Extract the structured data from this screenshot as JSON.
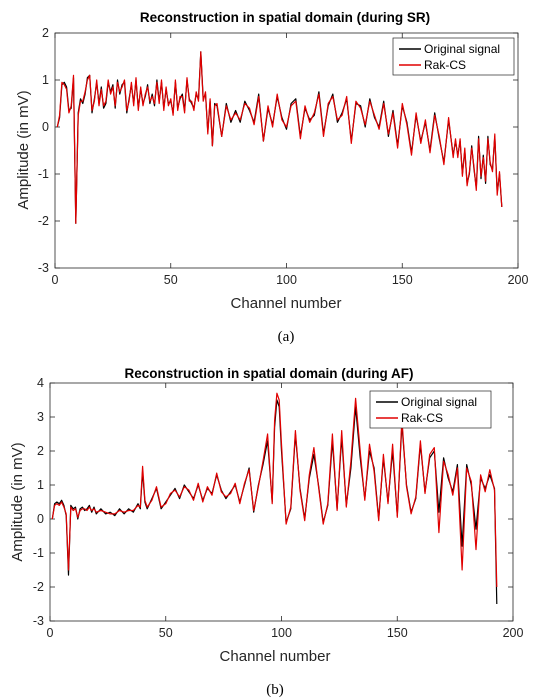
{
  "chart_data": [
    {
      "type": "line",
      "title": "Reconstruction in spatial domain (during SR)",
      "xlabel": "Channel number",
      "ylabel": "Amplitude (in mV)",
      "xlim": [
        0,
        200
      ],
      "ylim": [
        -3,
        2
      ],
      "xticks": [
        0,
        50,
        100,
        150,
        200
      ],
      "yticks": [
        -3,
        -2,
        -1,
        0,
        1,
        2
      ],
      "xtick_labels": [
        "0",
        "50",
        "100",
        "150",
        "200"
      ],
      "ytick_labels": [
        "-3",
        "-2",
        "-1",
        "0",
        "1",
        "2"
      ],
      "grid": false,
      "legend_position": "top-right",
      "caption": "(a)",
      "series": [
        {
          "name": "Original signal",
          "color": "#000000",
          "x": [
            1,
            2,
            3,
            4,
            5,
            6,
            7,
            8,
            9,
            10,
            11,
            12,
            13,
            14,
            15,
            16,
            17,
            18,
            19,
            20,
            21,
            22,
            23,
            24,
            25,
            26,
            27,
            28,
            29,
            30,
            31,
            32,
            33,
            34,
            35,
            36,
            37,
            38,
            39,
            40,
            41,
            42,
            43,
            44,
            45,
            46,
            47,
            48,
            49,
            50,
            51,
            52,
            53,
            54,
            55,
            56,
            57,
            58,
            59,
            60,
            61,
            62,
            63,
            64,
            65,
            66,
            67,
            68,
            69,
            70,
            72,
            74,
            76,
            78,
            80,
            82,
            84,
            86,
            88,
            90,
            92,
            94,
            96,
            98,
            100,
            102,
            104,
            106,
            108,
            110,
            112,
            114,
            116,
            118,
            120,
            122,
            124,
            126,
            128,
            130,
            132,
            134,
            136,
            138,
            140,
            142,
            144,
            146,
            148,
            150,
            152,
            154,
            156,
            158,
            160,
            162,
            164,
            166,
            168,
            170,
            172,
            173,
            174,
            175,
            176,
            177,
            178,
            179,
            180,
            181,
            182,
            183,
            184,
            185,
            186,
            187,
            188,
            189,
            190,
            191,
            192,
            193
          ],
          "y": [
            0,
            0.2,
            0.9,
            0.95,
            0.85,
            0.35,
            0.4,
            1.05,
            -2.05,
            0.3,
            0.6,
            0.5,
            0.7,
            1.05,
            1.1,
            0.3,
            0.6,
            0.95,
            0.5,
            0.85,
            0.4,
            0.5,
            0.95,
            0.75,
            0.9,
            0.4,
            1.0,
            0.7,
            0.9,
            0.95,
            0.3,
            0.6,
            0.9,
            0.5,
            1.0,
            0.4,
            0.8,
            0.5,
            0.65,
            0.9,
            0.5,
            0.7,
            0.45,
            1.0,
            0.55,
            0.95,
            0.4,
            0.8,
            0.5,
            0.55,
            0.3,
            0.95,
            0.4,
            0.6,
            0.7,
            0.35,
            1.0,
            0.6,
            0.5,
            0.4,
            0.7,
            0.6,
            1.6,
            0.6,
            0.7,
            -0.1,
            0.55,
            -0.4,
            0.5,
            0.45,
            -0.2,
            0.5,
            0.1,
            0.35,
            0.1,
            0.55,
            0.35,
            0.1,
            0.7,
            -0.3,
            0.4,
            0.05,
            0.65,
            0.2,
            -0.05,
            0.5,
            0.6,
            -0.2,
            0.4,
            0.15,
            0.25,
            0.75,
            -0.15,
            0.45,
            0.7,
            0.1,
            0.3,
            0.6,
            -0.3,
            0.5,
            0.45,
            0.0,
            0.6,
            0.2,
            0.0,
            0.55,
            -0.2,
            0.35,
            -0.4,
            0.45,
            0.1,
            -0.55,
            0.25,
            -0.3,
            0.1,
            -0.5,
            0.3,
            -0.25,
            -0.75,
            0.15,
            -0.6,
            -0.3,
            -0.6,
            -0.3,
            -1.0,
            -0.5,
            -1.2,
            -1.0,
            -0.4,
            -0.9,
            -1.3,
            -0.2,
            -1.1,
            -0.6,
            -1.2,
            -0.2,
            -0.8,
            -0.9,
            -0.2,
            -1.4,
            -1.0,
            -1.7
          ],
          "x_line": [
            1,
            200
          ]
        },
        {
          "name": "Rak-CS",
          "color": "#e00000",
          "x": [
            1,
            2,
            3,
            4,
            5,
            6,
            7,
            8,
            9,
            10,
            11,
            12,
            13,
            14,
            15,
            16,
            17,
            18,
            19,
            20,
            21,
            22,
            23,
            24,
            25,
            26,
            27,
            28,
            29,
            30,
            31,
            32,
            33,
            34,
            35,
            36,
            37,
            38,
            39,
            40,
            41,
            42,
            43,
            44,
            45,
            46,
            47,
            48,
            49,
            50,
            51,
            52,
            53,
            54,
            55,
            56,
            57,
            58,
            59,
            60,
            61,
            62,
            63,
            64,
            65,
            66,
            67,
            68,
            69,
            70,
            72,
            74,
            76,
            78,
            80,
            82,
            84,
            86,
            88,
            90,
            92,
            94,
            96,
            98,
            100,
            102,
            104,
            106,
            108,
            110,
            112,
            114,
            116,
            118,
            120,
            122,
            124,
            126,
            128,
            130,
            132,
            134,
            136,
            138,
            140,
            142,
            144,
            146,
            148,
            150,
            152,
            154,
            156,
            158,
            160,
            162,
            164,
            166,
            168,
            170,
            172,
            173,
            174,
            175,
            176,
            177,
            178,
            179,
            180,
            181,
            182,
            183,
            184,
            185,
            186,
            187,
            188,
            189,
            190,
            191,
            192,
            193
          ],
          "y": [
            0,
            0.25,
            0.95,
            0.9,
            0.8,
            0.3,
            0.45,
            1.1,
            -2.05,
            0.25,
            0.55,
            0.55,
            0.75,
            1.0,
            1.1,
            0.35,
            0.55,
            1.0,
            0.45,
            0.8,
            0.45,
            0.55,
            1.0,
            0.7,
            0.85,
            0.45,
            0.95,
            0.75,
            0.85,
            1.0,
            0.35,
            0.55,
            0.95,
            0.45,
            1.05,
            0.35,
            0.85,
            0.45,
            0.7,
            0.85,
            0.55,
            0.65,
            0.5,
            0.95,
            0.5,
            1.0,
            0.35,
            0.85,
            0.45,
            0.6,
            0.25,
            1.0,
            0.35,
            0.65,
            0.65,
            0.3,
            1.05,
            0.55,
            0.55,
            0.35,
            0.75,
            0.55,
            1.6,
            0.55,
            0.75,
            -0.15,
            0.6,
            -0.4,
            0.45,
            0.5,
            -0.2,
            0.45,
            0.15,
            0.3,
            0.15,
            0.5,
            0.4,
            0.05,
            0.65,
            -0.3,
            0.45,
            0.0,
            0.7,
            0.15,
            0.0,
            0.45,
            0.55,
            -0.25,
            0.45,
            0.1,
            0.3,
            0.7,
            -0.2,
            0.5,
            0.65,
            0.15,
            0.25,
            0.65,
            -0.35,
            0.55,
            0.4,
            0.05,
            0.55,
            0.25,
            -0.05,
            0.5,
            -0.15,
            0.3,
            -0.45,
            0.5,
            0.05,
            -0.6,
            0.3,
            -0.35,
            0.15,
            -0.55,
            0.25,
            -0.2,
            -0.8,
            0.2,
            -0.65,
            -0.25,
            -0.65,
            -0.25,
            -1.05,
            -0.45,
            -1.25,
            -0.95,
            -0.45,
            -0.85,
            -1.35,
            -0.25,
            -1.05,
            -0.65,
            -1.15,
            -0.25,
            -0.75,
            -0.95,
            -0.15,
            -1.45,
            -0.95,
            -1.7
          ]
        }
      ]
    },
    {
      "type": "line",
      "title": "Reconstruction in spatial domain (during AF)",
      "xlabel": "Channel number",
      "ylabel": "Amplitude (in mV)",
      "xlim": [
        0,
        200
      ],
      "ylim": [
        -3,
        4
      ],
      "xticks": [
        0,
        50,
        100,
        150,
        200
      ],
      "yticks": [
        -3,
        -2,
        -1,
        0,
        1,
        2,
        3,
        4
      ],
      "xtick_labels": [
        "0",
        "50",
        "100",
        "150",
        "200"
      ],
      "ytick_labels": [
        "-3",
        "-2",
        "-1",
        "0",
        "1",
        "2",
        "3",
        "4"
      ],
      "grid": false,
      "legend_position": "top-right",
      "caption": "(b)",
      "series": [
        {
          "name": "Original signal",
          "color": "#000000",
          "x": [
            1,
            2,
            3,
            4,
            5,
            6,
            7,
            8,
            9,
            10,
            11,
            12,
            13,
            14,
            15,
            16,
            17,
            18,
            19,
            20,
            22,
            24,
            26,
            28,
            30,
            32,
            34,
            36,
            38,
            39,
            40,
            41,
            42,
            44,
            46,
            48,
            50,
            52,
            54,
            56,
            58,
            60,
            62,
            64,
            66,
            68,
            70,
            72,
            74,
            76,
            78,
            80,
            82,
            84,
            86,
            88,
            90,
            92,
            94,
            96,
            97,
            98,
            99,
            100,
            102,
            104,
            106,
            108,
            110,
            112,
            114,
            116,
            118,
            120,
            122,
            124,
            126,
            128,
            130,
            132,
            134,
            136,
            138,
            140,
            142,
            144,
            146,
            148,
            150,
            152,
            154,
            156,
            158,
            160,
            162,
            164,
            166,
            168,
            170,
            172,
            174,
            176,
            178,
            180,
            182,
            184,
            186,
            188,
            190,
            192,
            193
          ],
          "y": [
            0,
            0.45,
            0.5,
            0.45,
            0.55,
            0.4,
            0.1,
            -1.65,
            0.4,
            0.3,
            0.35,
            0.0,
            0.3,
            0.35,
            0.25,
            0.3,
            0.4,
            0.2,
            0.35,
            0.15,
            0.3,
            0.15,
            0.2,
            0.1,
            0.3,
            0.15,
            0.3,
            0.2,
            0.45,
            0.3,
            1.4,
            0.5,
            0.3,
            0.6,
            0.9,
            0.3,
            0.5,
            0.7,
            0.9,
            0.6,
            1.0,
            0.8,
            0.6,
            1.0,
            0.55,
            0.9,
            0.75,
            1.3,
            0.85,
            0.6,
            0.8,
            1.0,
            0.5,
            1.0,
            1.5,
            0.2,
            1.0,
            1.6,
            2.3,
            0.5,
            2.7,
            3.5,
            3.3,
            2.0,
            -0.1,
            0.3,
            2.5,
            0.9,
            0.0,
            1.2,
            1.9,
            1.0,
            -0.1,
            0.4,
            2.3,
            0.3,
            2.4,
            0.4,
            1.5,
            3.3,
            1.8,
            0.6,
            2.0,
            1.5,
            0.0,
            1.8,
            0.5,
            2.0,
            0.1,
            2.8,
            1.0,
            0.2,
            0.6,
            2.2,
            0.8,
            1.8,
            2.0,
            0.2,
            1.8,
            1.2,
            0.8,
            1.6,
            -0.8,
            1.6,
            1.0,
            -0.3,
            1.2,
            0.9,
            1.3,
            0.9,
            -2.5
          ]
        },
        {
          "name": "Rak-CS",
          "color": "#e00000",
          "x": [
            1,
            2,
            3,
            4,
            5,
            6,
            7,
            8,
            9,
            10,
            11,
            12,
            13,
            14,
            15,
            16,
            17,
            18,
            19,
            20,
            22,
            24,
            26,
            28,
            30,
            32,
            34,
            36,
            38,
            39,
            40,
            41,
            42,
            44,
            46,
            48,
            50,
            52,
            54,
            56,
            58,
            60,
            62,
            64,
            66,
            68,
            70,
            72,
            74,
            76,
            78,
            80,
            82,
            84,
            86,
            88,
            90,
            92,
            94,
            96,
            97,
            98,
            99,
            100,
            102,
            104,
            106,
            108,
            110,
            112,
            114,
            116,
            118,
            120,
            122,
            124,
            126,
            128,
            130,
            132,
            134,
            136,
            138,
            140,
            142,
            144,
            146,
            148,
            150,
            152,
            154,
            156,
            158,
            160,
            162,
            164,
            166,
            168,
            170,
            172,
            174,
            176,
            178,
            180,
            182,
            184,
            186,
            188,
            190,
            192,
            193
          ],
          "y": [
            0,
            0.4,
            0.45,
            0.4,
            0.5,
            0.35,
            0.15,
            -1.5,
            0.35,
            0.25,
            0.3,
            0.05,
            0.25,
            0.3,
            0.3,
            0.25,
            0.35,
            0.25,
            0.3,
            0.2,
            0.25,
            0.2,
            0.15,
            0.15,
            0.25,
            0.2,
            0.25,
            0.25,
            0.4,
            0.35,
            1.55,
            0.55,
            0.35,
            0.55,
            0.95,
            0.35,
            0.45,
            0.75,
            0.85,
            0.65,
            0.95,
            0.85,
            0.55,
            1.05,
            0.5,
            0.95,
            0.7,
            1.35,
            0.8,
            0.65,
            0.75,
            1.05,
            0.45,
            1.05,
            1.45,
            0.25,
            0.95,
            1.7,
            2.5,
            0.45,
            2.9,
            3.7,
            3.5,
            2.2,
            -0.15,
            0.35,
            2.6,
            0.85,
            -0.05,
            1.3,
            2.1,
            0.95,
            -0.15,
            0.45,
            2.5,
            0.25,
            2.6,
            0.35,
            1.7,
            3.55,
            2.0,
            0.55,
            2.2,
            1.4,
            -0.05,
            1.9,
            0.45,
            2.2,
            0.05,
            2.95,
            0.95,
            0.15,
            0.65,
            2.3,
            0.75,
            1.9,
            2.1,
            -0.4,
            1.7,
            1.3,
            0.7,
            1.5,
            -1.5,
            1.5,
            1.1,
            -0.9,
            1.3,
            0.8,
            1.45,
            0.85,
            -2.0
          ]
        }
      ]
    }
  ]
}
